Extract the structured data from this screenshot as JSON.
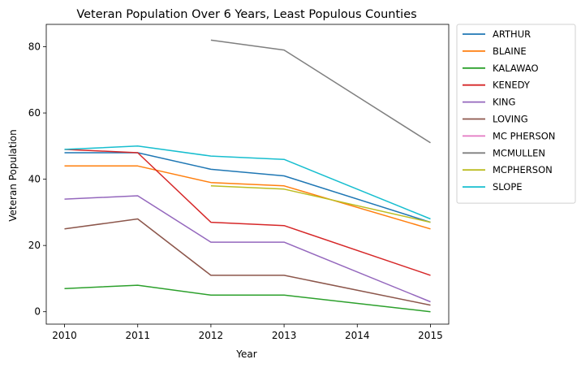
{
  "chart_data": {
    "type": "line",
    "title": "Veteran Population Over 6 Years, Least Populous Counties",
    "xlabel": "Year",
    "ylabel": "Veteran Population",
    "xlim": [
      2009.75,
      2015.25
    ],
    "ylim": [
      -3.75,
      86.75
    ],
    "xticks": [
      2010,
      2011,
      2012,
      2013,
      2014,
      2015
    ],
    "yticks": [
      0,
      20,
      40,
      60,
      80
    ],
    "grid": false,
    "legend_position": "outside-right",
    "series": [
      {
        "name": "ARTHUR",
        "color": "#1f77b4",
        "points": [
          [
            2010,
            48
          ],
          [
            2011,
            48
          ],
          [
            2012,
            43
          ],
          [
            2013,
            41
          ],
          [
            2015,
            27
          ]
        ]
      },
      {
        "name": "BLAINE",
        "color": "#ff7f0e",
        "points": [
          [
            2010,
            44
          ],
          [
            2011,
            44
          ],
          [
            2012,
            39
          ],
          [
            2013,
            38
          ],
          [
            2015,
            25
          ]
        ]
      },
      {
        "name": "KALAWAO",
        "color": "#2ca02c",
        "points": [
          [
            2010,
            7
          ],
          [
            2011,
            8
          ],
          [
            2012,
            5
          ],
          [
            2013,
            5
          ],
          [
            2015,
            0
          ]
        ]
      },
      {
        "name": "KENEDY",
        "color": "#d62728",
        "points": [
          [
            2010,
            49
          ],
          [
            2011,
            48
          ],
          [
            2012,
            27
          ],
          [
            2013,
            26
          ],
          [
            2015,
            11
          ]
        ]
      },
      {
        "name": "KING",
        "color": "#9467bd",
        "points": [
          [
            2010,
            34
          ],
          [
            2011,
            35
          ],
          [
            2012,
            21
          ],
          [
            2013,
            21
          ],
          [
            2015,
            3
          ]
        ]
      },
      {
        "name": "LOVING",
        "color": "#8c564b",
        "points": [
          [
            2010,
            25
          ],
          [
            2011,
            28
          ],
          [
            2012,
            11
          ],
          [
            2013,
            11
          ],
          [
            2015,
            2
          ]
        ]
      },
      {
        "name": "MC PHERSON",
        "color": "#e377c2",
        "points": []
      },
      {
        "name": "MCMULLEN",
        "color": "#7f7f7f",
        "points": [
          [
            2012,
            82
          ],
          [
            2013,
            79
          ],
          [
            2015,
            51
          ]
        ]
      },
      {
        "name": "MCPHERSON",
        "color": "#bcbd22",
        "points": [
          [
            2012,
            38
          ],
          [
            2013,
            37
          ],
          [
            2015,
            27
          ]
        ]
      },
      {
        "name": "SLOPE",
        "color": "#17becf",
        "points": [
          [
            2010,
            49
          ],
          [
            2011,
            50
          ],
          [
            2012,
            47
          ],
          [
            2013,
            46
          ],
          [
            2015,
            28
          ]
        ]
      }
    ]
  }
}
